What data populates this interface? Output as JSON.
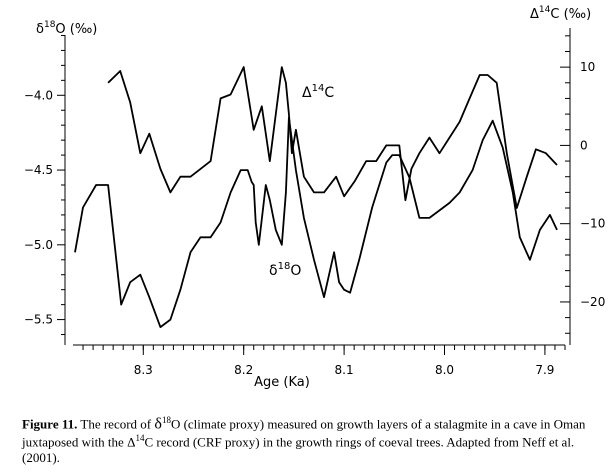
{
  "chart_data": {
    "type": "line",
    "left_axis_title": "δ18O (‰)",
    "right_axis_title": "Δ14C (‰)",
    "xlabel": "Age (Ka)",
    "x_reversed": true,
    "xlim": [
      8.37,
      7.88
    ],
    "x_ticks": [
      "8.3",
      "8.2",
      "8.1",
      "8.0",
      "7.9"
    ],
    "x_tick_values": [
      8.3,
      8.2,
      8.1,
      8.0,
      7.9
    ],
    "ylim_left": [
      -5.67,
      -3.55
    ],
    "y_left_ticks": [
      "-4.0",
      "-4.5",
      "-5.0",
      "-5.5"
    ],
    "y_left_tick_values": [
      -4.0,
      -4.5,
      -5.0,
      -5.5
    ],
    "ylim_right": [
      -25.5,
      15
    ],
    "y_right_ticks": [
      "10",
      "0",
      "-10",
      "-20"
    ],
    "y_right_tick_values": [
      10,
      0,
      -10,
      -20
    ],
    "series": [
      {
        "name": "Δ14C",
        "axis": "right",
        "x": [
          8.335,
          8.323,
          8.313,
          8.303,
          8.294,
          8.283,
          8.273,
          8.263,
          8.253,
          8.243,
          8.233,
          8.223,
          8.213,
          8.2,
          8.19,
          8.182,
          8.174,
          8.162,
          8.158,
          8.155,
          8.152,
          8.148,
          8.14,
          8.13,
          8.12,
          8.108,
          8.1,
          8.089,
          8.078,
          8.068,
          8.058,
          8.052,
          8.045,
          8.039,
          8.033,
          8.025,
          8.015,
          8.005,
          7.995,
          7.985,
          7.975,
          7.965,
          7.957,
          7.948,
          7.938,
          7.928,
          7.918,
          7.909,
          7.899,
          7.888
        ],
        "values": [
          8.0,
          9.5,
          5.5,
          -1.0,
          1.5,
          -3.0,
          -6.0,
          -4.0,
          -4.0,
          -3.0,
          -2.0,
          6.0,
          6.5,
          10.0,
          2.0,
          5.0,
          -2.0,
          10.0,
          8.0,
          4.0,
          -1.0,
          2.0,
          -4.0,
          -6.0,
          -6.0,
          -4.0,
          -6.5,
          -4.5,
          -2.0,
          -2.0,
          0.0,
          0.0,
          0.0,
          -7.0,
          -3.0,
          -1.0,
          1.0,
          -1.0,
          1.0,
          3.0,
          6.0,
          9.0,
          9.0,
          8.0,
          -1.0,
          -8.0,
          -4.0,
          -0.5,
          -1.0,
          -2.5
        ]
      },
      {
        "name": "δ18O",
        "axis": "left",
        "x": [
          8.368,
          8.36,
          8.347,
          8.335,
          8.322,
          8.313,
          8.303,
          8.294,
          8.283,
          8.273,
          8.263,
          8.253,
          8.243,
          8.233,
          8.223,
          8.213,
          8.203,
          8.196,
          8.192,
          8.19,
          8.188,
          8.185,
          8.178,
          8.174,
          8.168,
          8.162,
          8.158,
          8.155,
          8.152,
          8.148,
          8.14,
          8.13,
          8.12,
          8.11,
          8.105,
          8.1,
          8.094,
          8.085,
          8.072,
          8.058,
          8.052,
          8.045,
          8.035,
          8.025,
          8.015,
          8.005,
          7.995,
          7.985,
          7.972,
          7.962,
          7.952,
          7.942,
          7.932,
          7.925,
          7.915,
          7.905,
          7.895,
          7.888
        ],
        "values": [
          -5.05,
          -4.75,
          -4.6,
          -4.6,
          -5.4,
          -5.25,
          -5.2,
          -5.35,
          -5.55,
          -5.5,
          -5.3,
          -5.05,
          -4.95,
          -4.95,
          -4.85,
          -4.65,
          -4.5,
          -4.5,
          -4.58,
          -4.6,
          -4.85,
          -5.0,
          -4.6,
          -4.7,
          -4.9,
          -5.0,
          -4.65,
          -4.15,
          -4.3,
          -4.5,
          -4.82,
          -5.1,
          -5.35,
          -5.05,
          -5.25,
          -5.3,
          -5.32,
          -5.1,
          -4.75,
          -4.45,
          -4.4,
          -4.4,
          -4.55,
          -4.82,
          -4.82,
          -4.77,
          -4.72,
          -4.65,
          -4.5,
          -4.3,
          -4.17,
          -4.35,
          -4.65,
          -4.95,
          -5.1,
          -4.9,
          -4.8,
          -4.9
        ]
      }
    ]
  },
  "caption": {
    "figure_label": "Figure 11.",
    "text_1": " The record of ",
    "delta_lower": "δ",
    "sup_18": "18",
    "text_2": "O (climate proxy) measured on growth layers of a stalagmite in a cave in Oman juxtaposed with the ",
    "delta_upper": "Δ",
    "sup_14": "14",
    "text_3": "C record (CRF proxy) in the growth rings of coeval trees. Adapted from Neff et al. (2001)."
  }
}
